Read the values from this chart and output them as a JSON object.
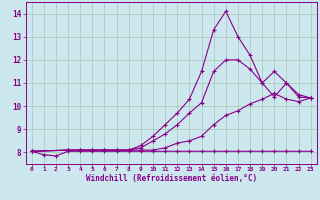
{
  "xlabel": "Windchill (Refroidissement éolien,°C)",
  "bg_color": "#cce8ee",
  "grid_color": "#aaccbb",
  "line_color": "#880088",
  "axis_color": "#440044",
  "xlim": [
    -0.5,
    23.5
  ],
  "ylim": [
    7.5,
    14.5
  ],
  "xticks": [
    0,
    1,
    2,
    3,
    4,
    5,
    6,
    7,
    8,
    9,
    10,
    11,
    12,
    13,
    14,
    15,
    16,
    17,
    18,
    19,
    20,
    21,
    22,
    23
  ],
  "yticks": [
    8,
    9,
    10,
    11,
    12,
    13,
    14
  ],
  "series": [
    {
      "x": [
        0,
        1,
        2,
        3,
        4,
        5,
        6,
        7,
        8,
        9,
        10,
        11,
        12,
        13,
        14,
        15,
        16,
        17,
        18,
        19,
        20,
        21,
        22,
        23
      ],
      "y": [
        8.05,
        7.9,
        7.85,
        8.05,
        8.05,
        8.05,
        8.05,
        8.05,
        8.05,
        8.05,
        8.05,
        8.05,
        8.05,
        8.05,
        8.05,
        8.05,
        8.05,
        8.05,
        8.05,
        8.05,
        8.05,
        8.05,
        8.05,
        8.05
      ]
    },
    {
      "x": [
        0,
        3,
        4,
        5,
        6,
        7,
        8,
        9,
        10,
        11,
        12,
        13,
        14,
        15,
        16,
        17,
        18,
        19,
        20,
        21,
        22,
        23
      ],
      "y": [
        8.05,
        8.1,
        8.1,
        8.1,
        8.1,
        8.1,
        8.1,
        8.3,
        8.7,
        9.2,
        9.7,
        10.3,
        11.5,
        13.3,
        14.1,
        13.0,
        12.2,
        11.0,
        10.4,
        11.0,
        10.4,
        10.35
      ]
    },
    {
      "x": [
        0,
        3,
        4,
        5,
        6,
        7,
        8,
        9,
        10,
        11,
        12,
        13,
        14,
        15,
        16,
        17,
        18,
        19,
        20,
        21,
        22,
        23
      ],
      "y": [
        8.05,
        8.1,
        8.1,
        8.1,
        8.1,
        8.1,
        8.1,
        8.2,
        8.5,
        8.8,
        9.2,
        9.7,
        10.15,
        11.5,
        12.0,
        12.0,
        11.6,
        11.0,
        11.5,
        11.0,
        10.5,
        10.35
      ]
    },
    {
      "x": [
        0,
        3,
        4,
        5,
        6,
        7,
        8,
        9,
        10,
        11,
        12,
        13,
        14,
        15,
        16,
        17,
        18,
        19,
        20,
        21,
        22,
        23
      ],
      "y": [
        8.05,
        8.1,
        8.1,
        8.1,
        8.1,
        8.1,
        8.1,
        8.1,
        8.1,
        8.2,
        8.4,
        8.5,
        8.7,
        9.2,
        9.6,
        9.8,
        10.1,
        10.3,
        10.55,
        10.3,
        10.2,
        10.35
      ]
    }
  ]
}
